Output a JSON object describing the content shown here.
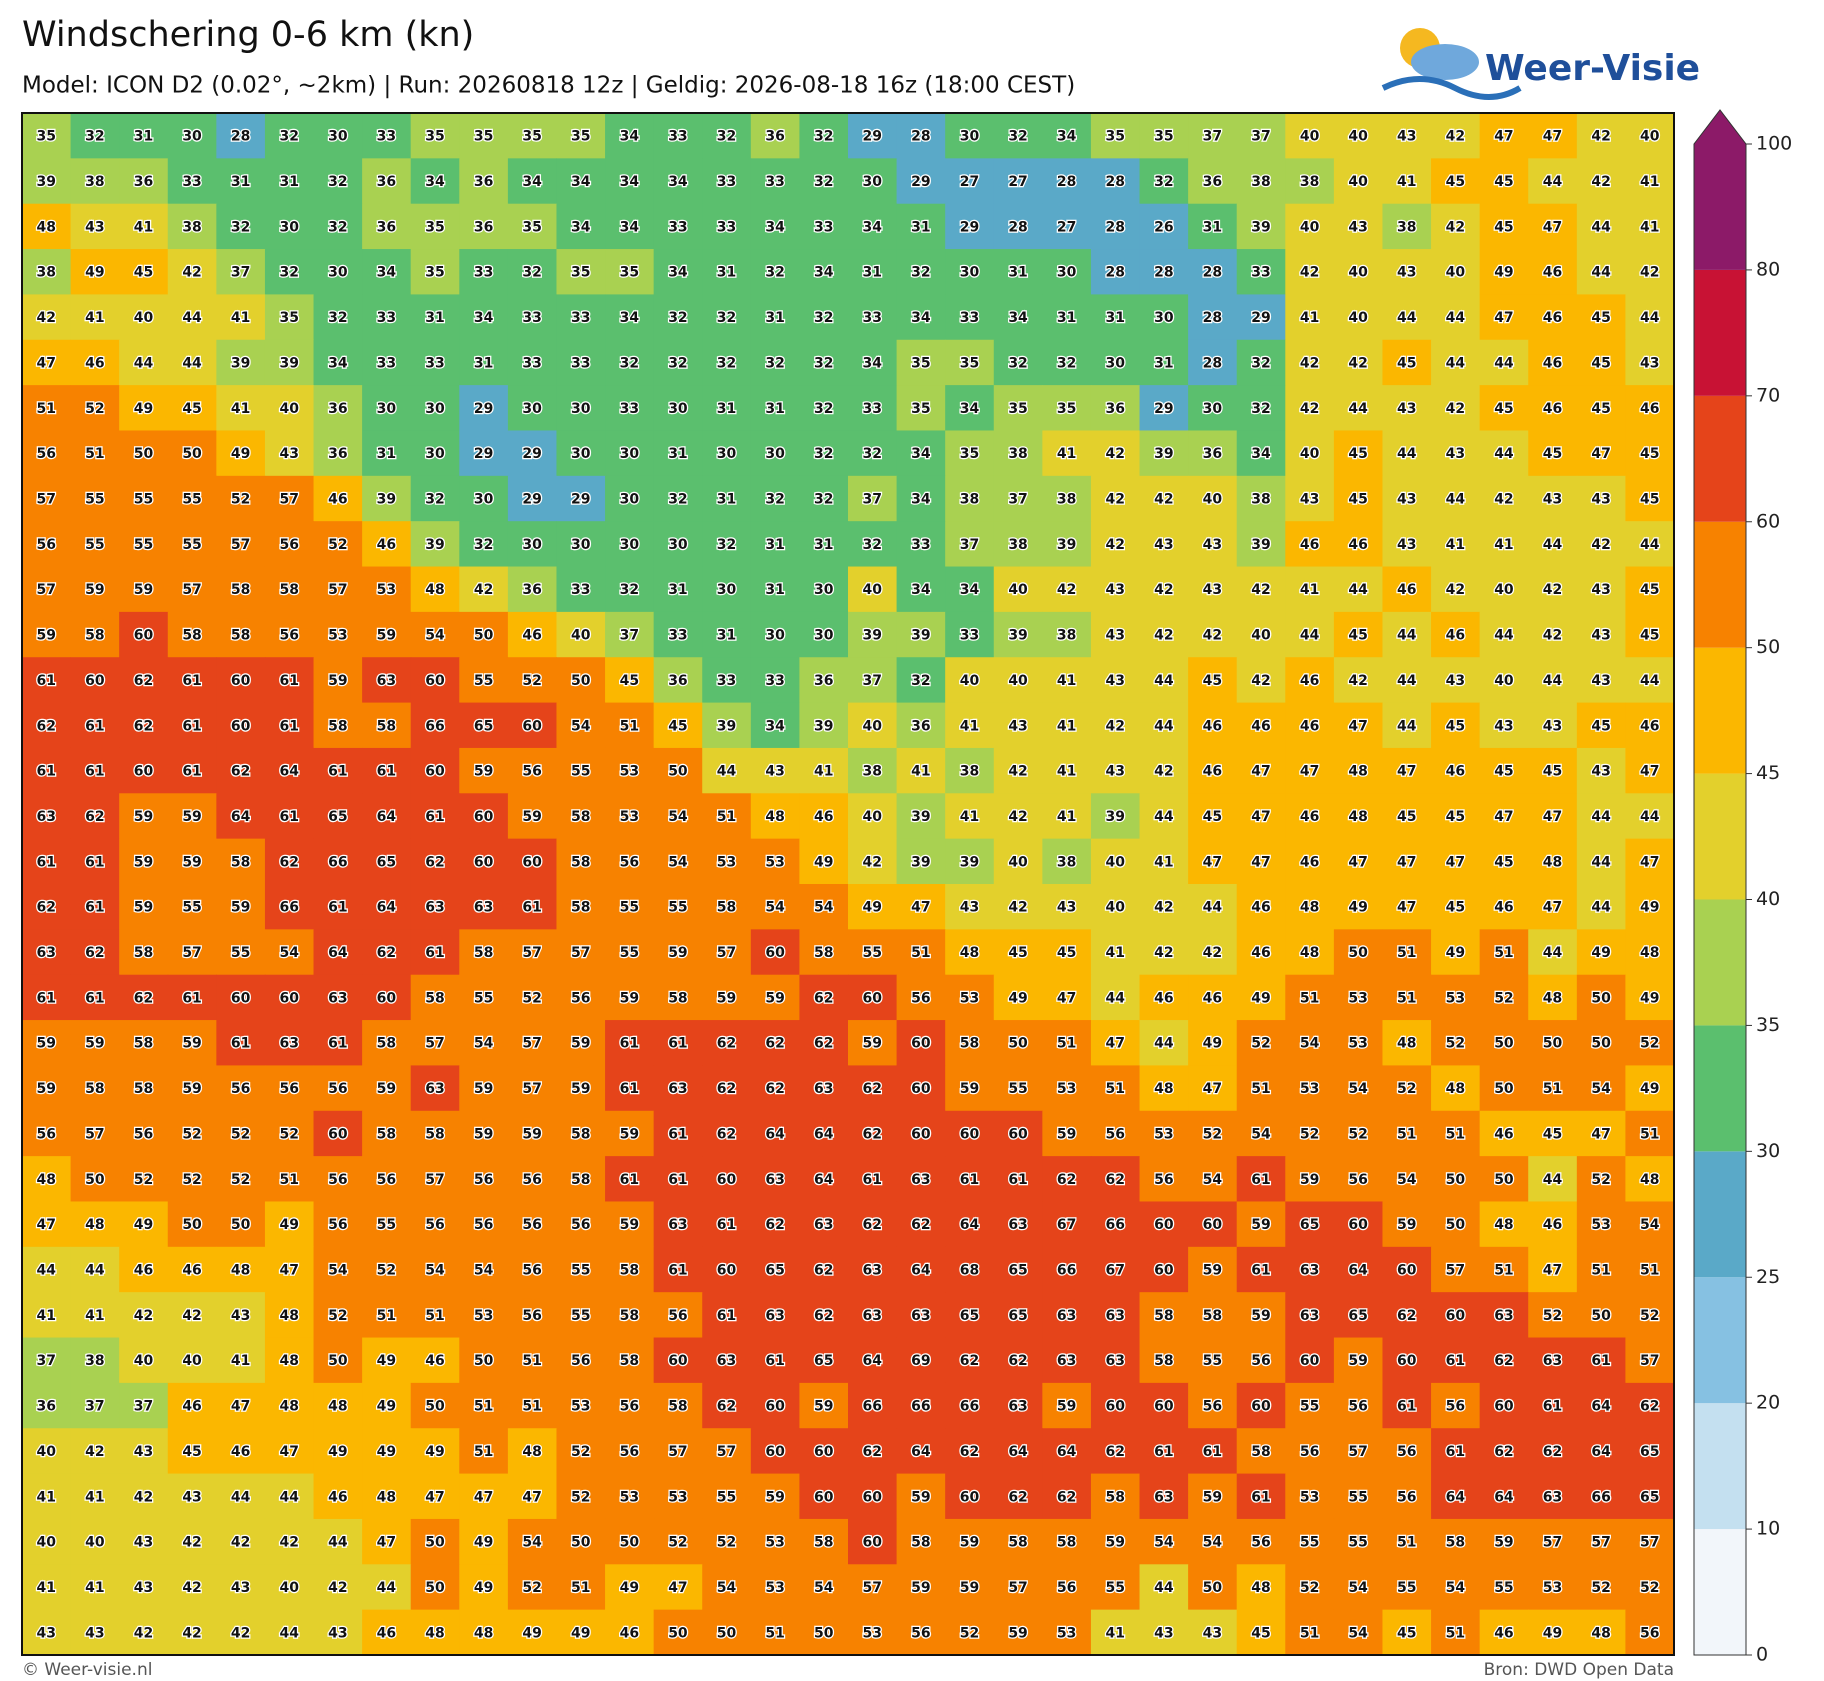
{
  "title": "Windschering 0-6 km (kn)",
  "subtitle": "Model: ICON D2 (0.02°, ~2km)  |  Run: 20260818 12z  |  Geldig: 2026-08-18 16z (18:00 CEST)",
  "logo": "Weer-Visie",
  "footer_left": "© Weer-visie.nl",
  "footer_right": "Bron: DWD Open Data",
  "colorbar": {
    "ticks": [
      0,
      10,
      20,
      25,
      30,
      35,
      40,
      45,
      50,
      60,
      70,
      80,
      100
    ],
    "colors": [
      "#f2f6fa",
      "#c4e0f0",
      "#86c1e2",
      "#5aa9c8",
      "#5bbf6e",
      "#a9d151",
      "#e3d02c",
      "#fbb700",
      "#f78200",
      "#e5441a",
      "#c81234",
      "#8c1a68"
    ]
  },
  "grid": [
    [
      35,
      32,
      31,
      30,
      28,
      32,
      30,
      33,
      35,
      35,
      35,
      35,
      34,
      33,
      32,
      36,
      32,
      29,
      28,
      30,
      32,
      34,
      35,
      35,
      37,
      37,
      40,
      40,
      43,
      42,
      47,
      47,
      42,
      40
    ],
    [
      39,
      38,
      36,
      33,
      31,
      31,
      32,
      36,
      34,
      36,
      34,
      34,
      34,
      34,
      33,
      33,
      32,
      30,
      29,
      27,
      27,
      28,
      28,
      32,
      36,
      38,
      38,
      40,
      41,
      45,
      45,
      44,
      42,
      41
    ],
    [
      48,
      43,
      41,
      38,
      32,
      30,
      32,
      36,
      35,
      36,
      35,
      34,
      34,
      33,
      33,
      34,
      33,
      34,
      31,
      29,
      28,
      27,
      28,
      26,
      31,
      39,
      40,
      43,
      38,
      42,
      45,
      47,
      44,
      41
    ],
    [
      38,
      49,
      45,
      42,
      37,
      32,
      30,
      34,
      35,
      33,
      32,
      35,
      35,
      34,
      31,
      32,
      34,
      31,
      32,
      30,
      31,
      30,
      28,
      28,
      28,
      33,
      42,
      40,
      43,
      40,
      49,
      46,
      44,
      42
    ],
    [
      42,
      41,
      40,
      44,
      41,
      35,
      32,
      33,
      31,
      34,
      33,
      33,
      34,
      32,
      32,
      31,
      32,
      33,
      34,
      33,
      34,
      31,
      31,
      30,
      28,
      29,
      41,
      40,
      44,
      44,
      47,
      46,
      45,
      44
    ],
    [
      47,
      46,
      44,
      44,
      39,
      39,
      34,
      33,
      33,
      31,
      33,
      33,
      32,
      32,
      32,
      32,
      32,
      34,
      35,
      35,
      32,
      32,
      30,
      31,
      28,
      32,
      42,
      42,
      45,
      44,
      44,
      46,
      45,
      43
    ],
    [
      51,
      52,
      49,
      45,
      41,
      40,
      36,
      30,
      30,
      29,
      30,
      30,
      33,
      30,
      31,
      31,
      32,
      33,
      35,
      34,
      35,
      35,
      36,
      29,
      30,
      32,
      42,
      44,
      43,
      42,
      45,
      46,
      45,
      46
    ],
    [
      56,
      51,
      50,
      50,
      49,
      43,
      36,
      31,
      30,
      29,
      29,
      30,
      30,
      31,
      30,
      30,
      32,
      32,
      34,
      35,
      38,
      41,
      42,
      39,
      36,
      34,
      40,
      45,
      44,
      43,
      44,
      45,
      47,
      45
    ],
    [
      57,
      55,
      55,
      55,
      52,
      57,
      46,
      39,
      32,
      30,
      29,
      29,
      30,
      32,
      31,
      32,
      32,
      37,
      34,
      38,
      37,
      38,
      42,
      42,
      40,
      38,
      43,
      45,
      43,
      44,
      42,
      43,
      43,
      45
    ],
    [
      56,
      55,
      55,
      55,
      57,
      56,
      52,
      46,
      39,
      32,
      30,
      30,
      30,
      30,
      32,
      31,
      31,
      32,
      33,
      37,
      38,
      39,
      42,
      43,
      43,
      39,
      46,
      46,
      43,
      41,
      41,
      44,
      42,
      44
    ],
    [
      57,
      59,
      59,
      57,
      58,
      58,
      57,
      53,
      48,
      42,
      36,
      33,
      32,
      31,
      30,
      31,
      30,
      40,
      34,
      34,
      40,
      42,
      43,
      42,
      43,
      42,
      41,
      44,
      46,
      42,
      40,
      42,
      43,
      45
    ],
    [
      59,
      58,
      60,
      58,
      58,
      56,
      53,
      59,
      54,
      50,
      46,
      40,
      37,
      33,
      31,
      30,
      30,
      39,
      39,
      33,
      39,
      38,
      43,
      42,
      42,
      40,
      44,
      45,
      44,
      46,
      44,
      42,
      43,
      45
    ],
    [
      61,
      60,
      62,
      61,
      60,
      61,
      59,
      63,
      60,
      55,
      52,
      50,
      45,
      36,
      33,
      33,
      36,
      37,
      32,
      40,
      40,
      41,
      43,
      44,
      45,
      42,
      46,
      42,
      44,
      43,
      40,
      44,
      43,
      44
    ],
    [
      62,
      61,
      62,
      61,
      60,
      61,
      58,
      58,
      66,
      65,
      60,
      54,
      51,
      45,
      39,
      34,
      39,
      40,
      36,
      41,
      43,
      41,
      42,
      44,
      46,
      46,
      46,
      47,
      44,
      45,
      43,
      43,
      45,
      46
    ],
    [
      61,
      61,
      60,
      61,
      62,
      64,
      61,
      61,
      60,
      59,
      56,
      55,
      53,
      50,
      44,
      43,
      41,
      38,
      41,
      38,
      42,
      41,
      43,
      42,
      46,
      47,
      47,
      48,
      47,
      46,
      45,
      45,
      43,
      47
    ],
    [
      63,
      62,
      59,
      59,
      64,
      61,
      65,
      64,
      61,
      60,
      59,
      58,
      53,
      54,
      51,
      48,
      46,
      40,
      39,
      41,
      42,
      41,
      39,
      44,
      45,
      47,
      46,
      48,
      45,
      45,
      47,
      47,
      44,
      44
    ],
    [
      61,
      61,
      59,
      59,
      58,
      62,
      66,
      65,
      62,
      60,
      60,
      58,
      56,
      54,
      53,
      53,
      49,
      42,
      39,
      39,
      40,
      38,
      40,
      41,
      47,
      47,
      46,
      47,
      47,
      47,
      45,
      48,
      44,
      47
    ],
    [
      62,
      61,
      59,
      55,
      59,
      66,
      61,
      64,
      63,
      63,
      61,
      58,
      55,
      55,
      58,
      54,
      54,
      49,
      47,
      43,
      42,
      43,
      40,
      42,
      44,
      46,
      48,
      49,
      47,
      45,
      46,
      47,
      44,
      49
    ],
    [
      63,
      62,
      58,
      57,
      55,
      54,
      64,
      62,
      61,
      58,
      57,
      57,
      55,
      59,
      57,
      60,
      58,
      55,
      51,
      48,
      45,
      45,
      41,
      42,
      42,
      46,
      48,
      50,
      51,
      49,
      51,
      44,
      49,
      48
    ],
    [
      61,
      61,
      62,
      61,
      60,
      60,
      63,
      60,
      58,
      55,
      52,
      56,
      59,
      58,
      59,
      59,
      62,
      60,
      56,
      53,
      49,
      47,
      44,
      46,
      46,
      49,
      51,
      53,
      51,
      53,
      52,
      48,
      50,
      49
    ],
    [
      59,
      59,
      58,
      59,
      61,
      63,
      61,
      58,
      57,
      54,
      57,
      59,
      61,
      61,
      62,
      62,
      62,
      59,
      60,
      58,
      50,
      51,
      47,
      44,
      49,
      52,
      54,
      53,
      48,
      52,
      50,
      50,
      50,
      52
    ],
    [
      59,
      58,
      58,
      59,
      56,
      56,
      56,
      59,
      63,
      59,
      57,
      59,
      61,
      63,
      62,
      62,
      63,
      62,
      60,
      59,
      55,
      53,
      51,
      48,
      47,
      51,
      53,
      54,
      52,
      48,
      50,
      51,
      54,
      49
    ],
    [
      56,
      57,
      56,
      52,
      52,
      52,
      60,
      58,
      58,
      59,
      59,
      58,
      59,
      61,
      62,
      64,
      64,
      62,
      60,
      60,
      60,
      59,
      56,
      53,
      52,
      54,
      52,
      52,
      51,
      51,
      46,
      45,
      47,
      51
    ],
    [
      48,
      50,
      52,
      52,
      52,
      51,
      56,
      56,
      57,
      56,
      56,
      58,
      61,
      61,
      60,
      63,
      64,
      61,
      63,
      61,
      61,
      62,
      62,
      56,
      54,
      61,
      59,
      56,
      54,
      50,
      50,
      44,
      52,
      48
    ],
    [
      47,
      48,
      49,
      50,
      50,
      49,
      56,
      55,
      56,
      56,
      56,
      56,
      59,
      63,
      61,
      62,
      63,
      62,
      62,
      64,
      63,
      67,
      66,
      60,
      60,
      59,
      65,
      60,
      59,
      50,
      48,
      46,
      53,
      54
    ],
    [
      44,
      44,
      46,
      46,
      48,
      47,
      54,
      52,
      54,
      54,
      56,
      55,
      58,
      61,
      60,
      65,
      62,
      63,
      64,
      68,
      65,
      66,
      67,
      60,
      59,
      61,
      63,
      64,
      60,
      57,
      51,
      47,
      51,
      51
    ],
    [
      41,
      41,
      42,
      42,
      43,
      48,
      52,
      51,
      51,
      53,
      56,
      55,
      58,
      56,
      61,
      63,
      62,
      63,
      63,
      65,
      65,
      63,
      63,
      58,
      58,
      59,
      63,
      65,
      62,
      60,
      63,
      52,
      50,
      52
    ],
    [
      37,
      38,
      40,
      40,
      41,
      48,
      50,
      49,
      46,
      50,
      51,
      56,
      58,
      60,
      63,
      61,
      65,
      64,
      69,
      62,
      62,
      63,
      63,
      58,
      55,
      56,
      60,
      59,
      60,
      61,
      62,
      63,
      61,
      57
    ],
    [
      36,
      37,
      37,
      46,
      47,
      48,
      48,
      49,
      50,
      51,
      51,
      53,
      56,
      58,
      62,
      60,
      59,
      66,
      66,
      66,
      63,
      59,
      60,
      60,
      56,
      60,
      55,
      56,
      61,
      56,
      60,
      61,
      64,
      62
    ],
    [
      40,
      42,
      43,
      45,
      46,
      47,
      49,
      49,
      49,
      51,
      48,
      52,
      56,
      57,
      57,
      60,
      60,
      62,
      64,
      62,
      64,
      64,
      62,
      61,
      61,
      58,
      56,
      57,
      56,
      61,
      62,
      62,
      64,
      65
    ],
    [
      41,
      41,
      42,
      43,
      44,
      44,
      46,
      48,
      47,
      47,
      47,
      52,
      53,
      53,
      55,
      59,
      60,
      60,
      59,
      60,
      62,
      62,
      58,
      63,
      59,
      61,
      53,
      55,
      56,
      64,
      64,
      63,
      66,
      65
    ],
    [
      40,
      40,
      43,
      42,
      42,
      42,
      44,
      47,
      50,
      49,
      54,
      50,
      50,
      52,
      52,
      53,
      58,
      60,
      58,
      59,
      58,
      58,
      59,
      54,
      54,
      56,
      55,
      55,
      51,
      58,
      59,
      57,
      57,
      57
    ],
    [
      41,
      41,
      43,
      42,
      43,
      40,
      42,
      44,
      50,
      49,
      52,
      51,
      49,
      47,
      54,
      53,
      54,
      57,
      59,
      59,
      57,
      56,
      55,
      44,
      50,
      48,
      52,
      54,
      55,
      54,
      55,
      53,
      52,
      52
    ],
    [
      43,
      43,
      42,
      42,
      42,
      44,
      43,
      46,
      48,
      48,
      49,
      49,
      46,
      50,
      50,
      51,
      50,
      53,
      56,
      52,
      59,
      53,
      41,
      43,
      43,
      45,
      51,
      54,
      45,
      51,
      46,
      49,
      48,
      56
    ]
  ]
}
